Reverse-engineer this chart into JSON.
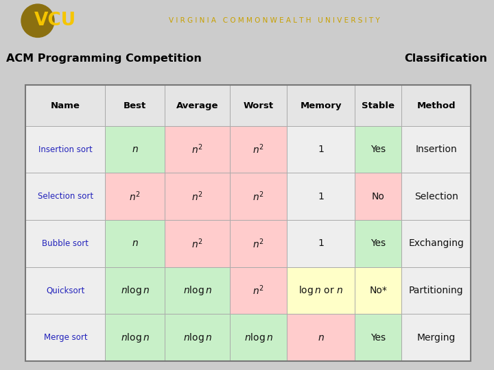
{
  "title_left": "ACM Programming Competition",
  "title_right": "Classification",
  "header_bg": "#F2C011",
  "top_bar_bg": "#111111",
  "header_row": [
    "Name",
    "Best",
    "Average",
    "Worst",
    "Memory",
    "Stable",
    "Method"
  ],
  "rows": [
    {
      "cells": [
        "Insertion sort",
        "$n$",
        "$n^2$",
        "$n^2$",
        "1",
        "Yes",
        "Insertion"
      ],
      "colors": [
        "#eeeeee",
        "#c8f0c8",
        "#ffcccc",
        "#ffcccc",
        "#eeeeee",
        "#c8f0c8",
        "#eeeeee"
      ]
    },
    {
      "cells": [
        "Selection sort",
        "$n^2$",
        "$n^2$",
        "$n^2$",
        "1",
        "No",
        "Selection"
      ],
      "colors": [
        "#eeeeee",
        "#ffcccc",
        "#ffcccc",
        "#ffcccc",
        "#eeeeee",
        "#ffcccc",
        "#eeeeee"
      ]
    },
    {
      "cells": [
        "Bubble sort",
        "$n$",
        "$n^2$",
        "$n^2$",
        "1",
        "Yes",
        "Exchanging"
      ],
      "colors": [
        "#eeeeee",
        "#c8f0c8",
        "#ffcccc",
        "#ffcccc",
        "#eeeeee",
        "#c8f0c8",
        "#eeeeee"
      ]
    },
    {
      "cells": [
        "Quicksort",
        "$n \\log n$",
        "$n \\log n$",
        "$n^2$",
        "$\\log n$ or $n$",
        "No*",
        "Partitioning"
      ],
      "colors": [
        "#eeeeee",
        "#c8f0c8",
        "#c8f0c8",
        "#ffcccc",
        "#ffffc8",
        "#ffffc8",
        "#eeeeee"
      ]
    },
    {
      "cells": [
        "Merge sort",
        "$n \\log n$",
        "$n \\log n$",
        "$n \\log n$",
        "$n$",
        "Yes",
        "Merging"
      ],
      "colors": [
        "#eeeeee",
        "#c8f0c8",
        "#c8f0c8",
        "#c8f0c8",
        "#ffcccc",
        "#c8f0c8",
        "#eeeeee"
      ]
    }
  ],
  "col_widths_rel": [
    1.4,
    1.05,
    1.15,
    1.0,
    1.2,
    0.82,
    1.22
  ],
  "name_color": "#2222bb",
  "text_color": "#111111",
  "border_color": "#aaaaaa",
  "outer_border_color": "#777777",
  "table_bg": "#cccccc",
  "vcu_text": "V I R G I N I A   C O M M O N W E A L T H   U N I V E R S I T Y"
}
